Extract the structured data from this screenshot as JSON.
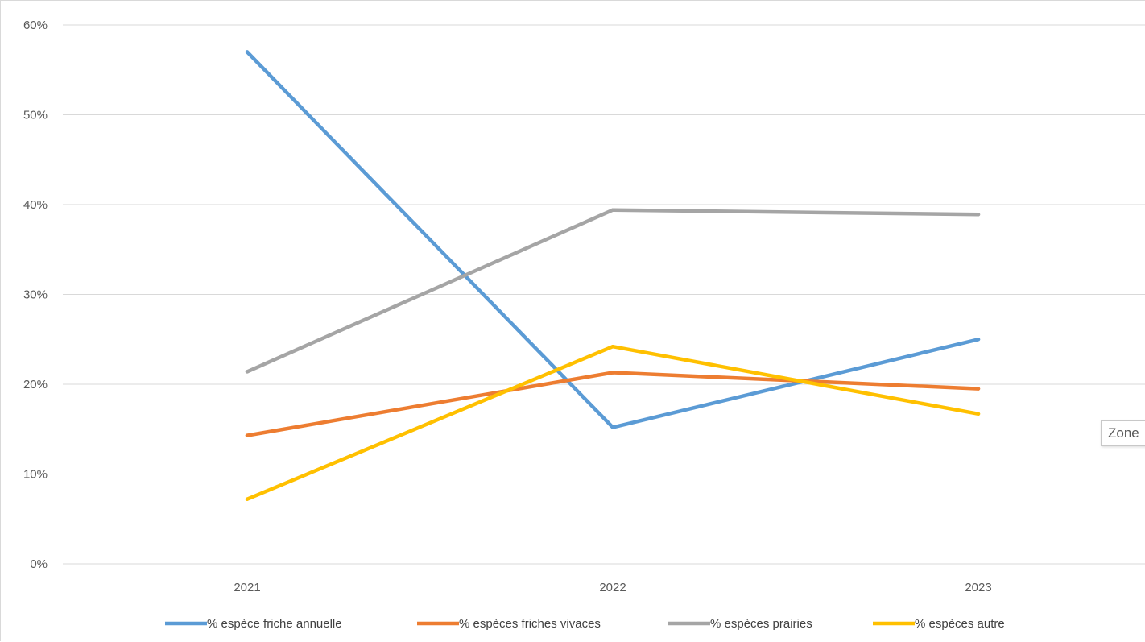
{
  "chart_data": {
    "type": "line",
    "title": "",
    "xlabel": "",
    "ylabel": "",
    "categories": [
      "2021",
      "2022",
      "2023"
    ],
    "ylim": [
      0,
      0.6
    ],
    "yticks": [
      0,
      0.1,
      0.2,
      0.3,
      0.4,
      0.5,
      0.6
    ],
    "ytick_labels": [
      "0%",
      "10%",
      "20%",
      "30%",
      "40%",
      "50%",
      "60%"
    ],
    "grid": "horizontal",
    "legend_position": "bottom",
    "series": [
      {
        "name": "% espèce friche annuelle",
        "color": "#5b9bd5",
        "values": [
          0.57,
          0.152,
          0.25
        ]
      },
      {
        "name": "% espèces friches vivaces",
        "color": "#ed7d31",
        "values": [
          0.143,
          0.213,
          0.195
        ]
      },
      {
        "name": "% espèces prairies",
        "color": "#a5a5a5",
        "values": [
          0.214,
          0.394,
          0.389
        ]
      },
      {
        "name": "% espèces autre",
        "color": "#ffc000",
        "values": [
          0.072,
          0.242,
          0.167
        ]
      }
    ]
  },
  "tooltip": {
    "label": "Zone"
  }
}
